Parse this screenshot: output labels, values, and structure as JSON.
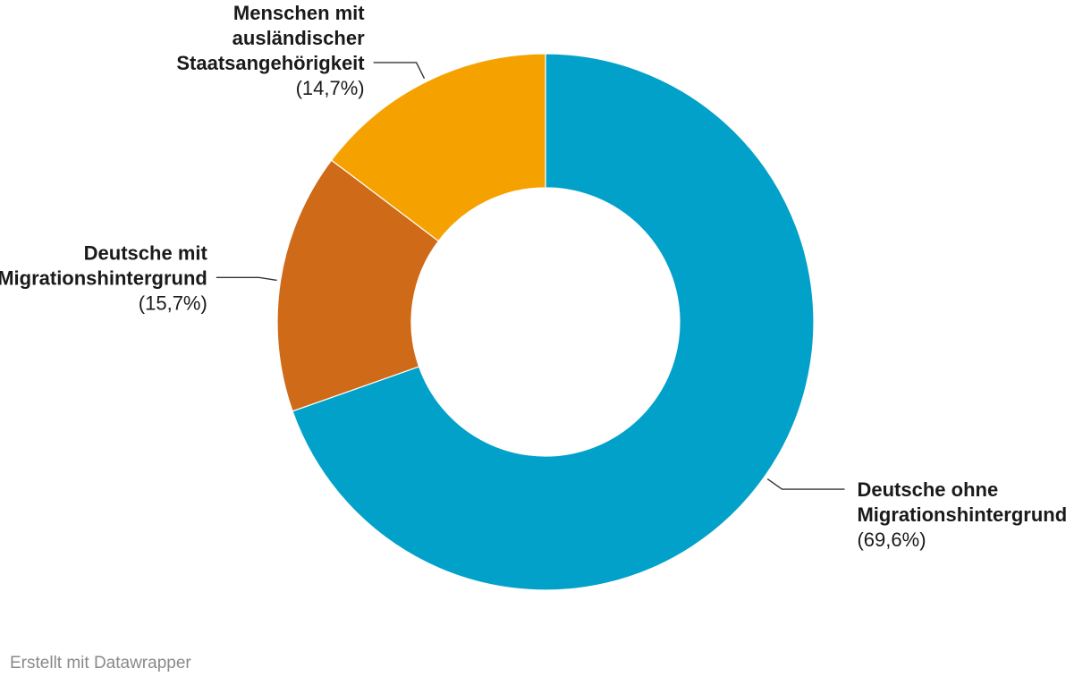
{
  "chart_data": {
    "type": "pie",
    "donut": true,
    "slices": [
      {
        "name_lines": [
          "Deutsche ohne",
          "Migrationshintergrund"
        ],
        "value": 69.6,
        "pct_label": "(69,6%)",
        "color": "#02a1c9"
      },
      {
        "name_lines": [
          "Deutsche mit",
          "Migrationshintergrund"
        ],
        "value": 15.7,
        "pct_label": "(15,7%)",
        "color": "#cf6a18"
      },
      {
        "name_lines": [
          "Menschen mit",
          "ausländischer",
          "Staatsangehörigkeit"
        ],
        "value": 14.7,
        "pct_label": "(14,7%)",
        "color": "#f5a200"
      }
    ]
  },
  "footer": {
    "credit": "Erstellt mit Datawrapper"
  }
}
